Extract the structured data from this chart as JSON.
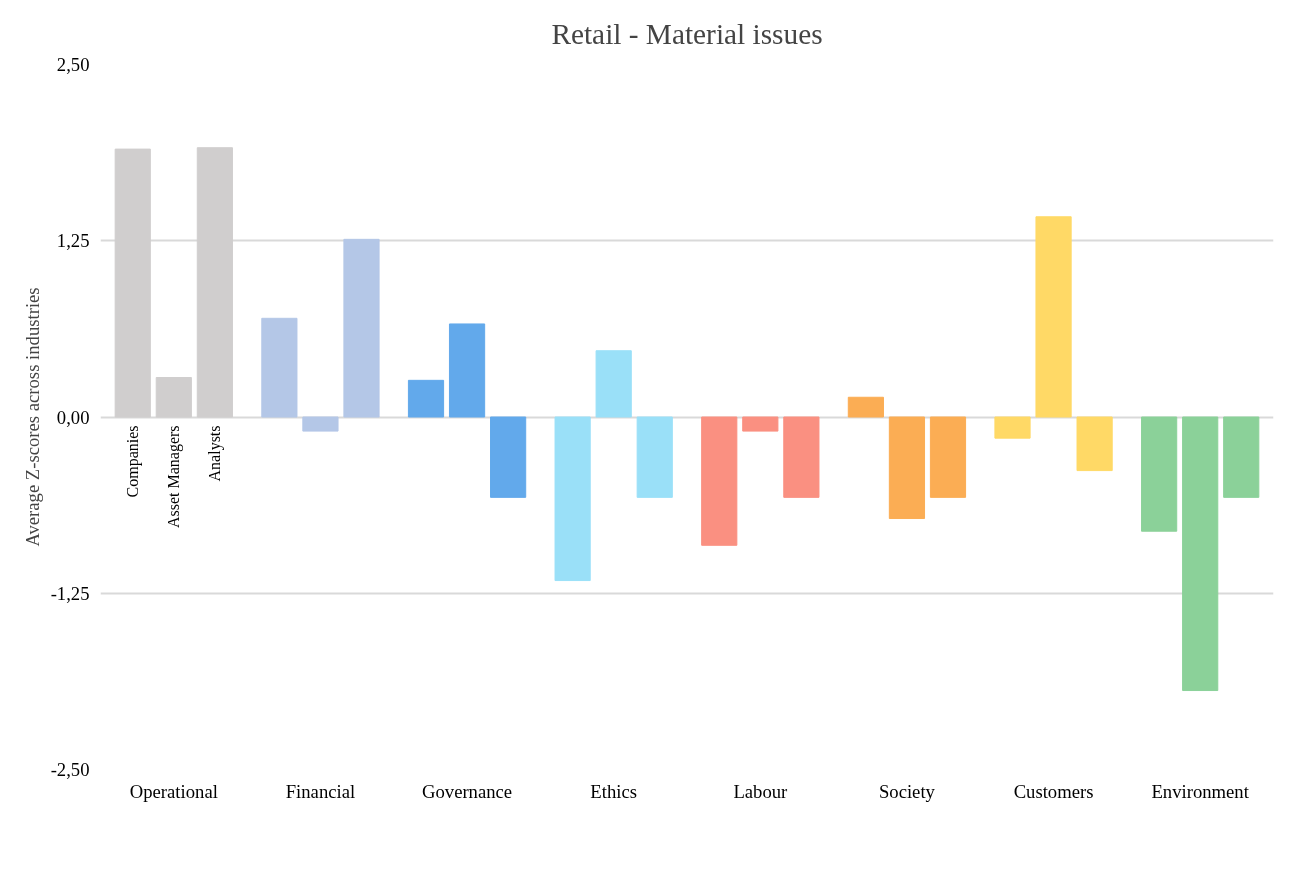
{
  "chart_data": {
    "type": "bar",
    "title": "Retail - Material issues",
    "ylabel": "Average Z-scores across industries",
    "categories": [
      "Operational",
      "Financial",
      "Governance",
      "Ethics",
      "Labour",
      "Society",
      "Customers",
      "Environment"
    ],
    "series": [
      {
        "name": "Companies",
        "colors": [
          "#d0cece",
          "#b4c7e7",
          "#62a9eb",
          "#9ae0f8",
          "#fa9081",
          "#fbad54",
          "#ffd966",
          "#8bd199"
        ],
        "values": [
          1.9,
          0.7,
          0.26,
          -1.16,
          -0.91,
          0.14,
          -0.15,
          -0.81
        ]
      },
      {
        "name": "Asset Managers",
        "colors": [
          "#d0cece",
          "#b4c7e7",
          "#62a9eb",
          "#9ae0f8",
          "#fa9081",
          "#fbad54",
          "#ffd966",
          "#8bd199"
        ],
        "values": [
          0.28,
          -0.1,
          0.66,
          0.47,
          -0.1,
          -0.72,
          1.42,
          -1.94
        ]
      },
      {
        "name": "Analysts",
        "colors": [
          "#d0cece",
          "#b4c7e7",
          "#62a9eb",
          "#9ae0f8",
          "#fa9081",
          "#fbad54",
          "#ffd966",
          "#8bd199"
        ],
        "values": [
          1.91,
          1.26,
          -0.57,
          -0.57,
          -0.57,
          -0.57,
          -0.38,
          -0.57
        ]
      }
    ],
    "ylim": [
      -2.5,
      2.5
    ],
    "yticks": [
      {
        "value": -2.5,
        "label": "-2,50"
      },
      {
        "value": -1.25,
        "label": "-1,25"
      },
      {
        "value": 0,
        "label": "0,00"
      },
      {
        "value": 1.25,
        "label": "1,25"
      },
      {
        "value": 2.5,
        "label": "2,50"
      }
    ],
    "grid": "y"
  }
}
